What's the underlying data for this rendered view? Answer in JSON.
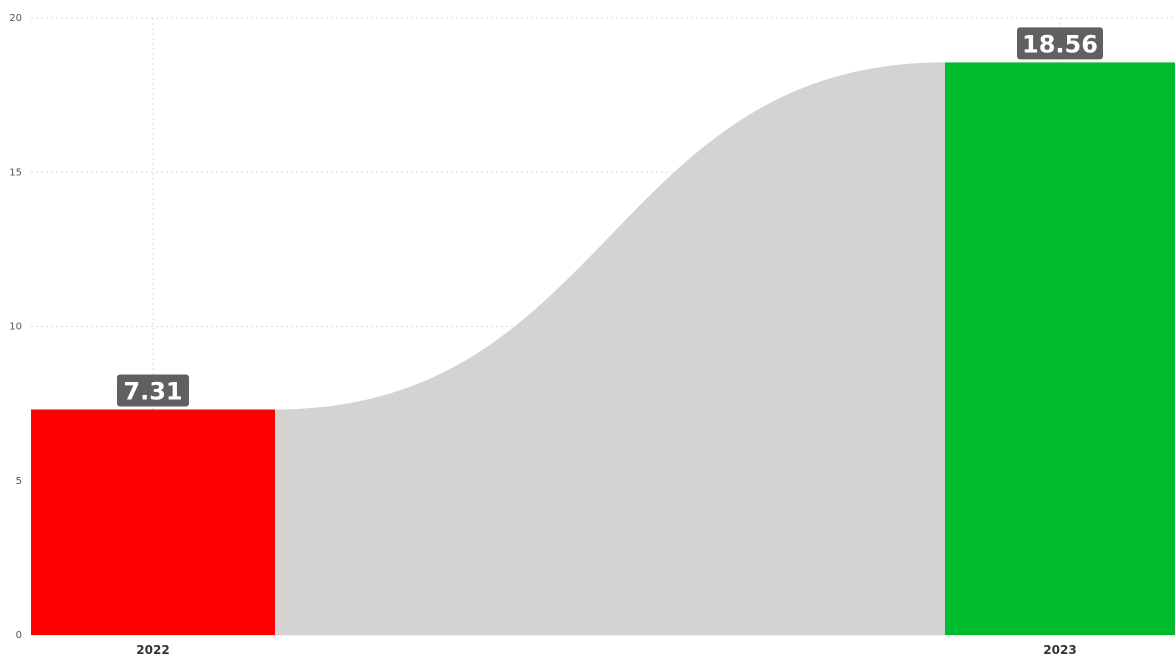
{
  "chart_data": {
    "type": "bar",
    "title": "",
    "xlabel": "",
    "ylabel": "",
    "categories": [
      "2022",
      "2023"
    ],
    "values": [
      7.31,
      18.56
    ],
    "data_labels": [
      "7.31",
      "18.56"
    ],
    "ylim": [
      0,
      20
    ],
    "yticks": [
      "0",
      "5",
      "10",
      "15",
      "20"
    ],
    "grid": true,
    "legend": "none",
    "colors": {
      "bars": [
        "#ff0000",
        "#00bb2d"
      ],
      "connector": "#d4d3d2",
      "label_background": "#606060",
      "grid": "#d9d9d9"
    }
  }
}
